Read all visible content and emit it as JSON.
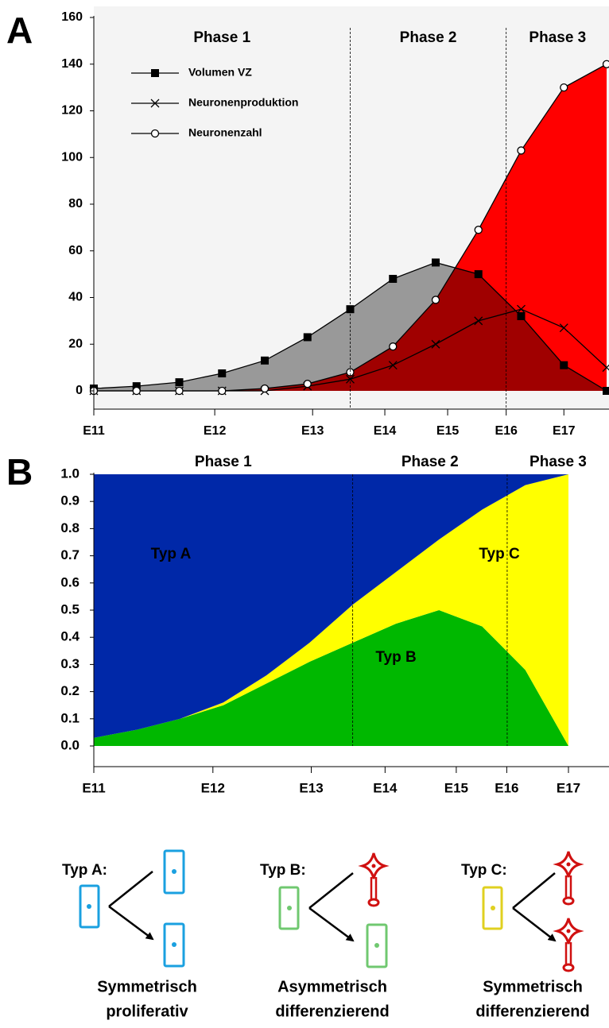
{
  "chart_data": [
    {
      "type": "line",
      "panel": "A",
      "annotations": [
        "Phase 1",
        "Phase 2",
        "Phase 3"
      ],
      "vlines": [
        6,
        9.65
      ],
      "x": [
        0,
        1,
        2,
        3,
        4,
        5,
        6,
        7,
        8,
        9,
        10,
        11,
        12
      ],
      "xlim": [
        0,
        12
      ],
      "xticks": [
        {
          "value": 0,
          "label": "E11"
        },
        {
          "value": 2.83,
          "label": "E12"
        },
        {
          "value": 5.12,
          "label": "E13"
        },
        {
          "value": 6.81,
          "label": "E14"
        },
        {
          "value": 8.28,
          "label": "E15"
        },
        {
          "value": 9.65,
          "label": "E16"
        },
        {
          "value": 11,
          "label": "E17"
        }
      ],
      "ylim": [
        0,
        160
      ],
      "yticks": [
        0,
        20,
        40,
        60,
        80,
        100,
        120,
        140,
        160
      ],
      "legend": "upper left",
      "series": [
        {
          "name": "Volumen VZ",
          "marker": "square",
          "color": "#000000",
          "fill": "#a0a0a0",
          "values": [
            1,
            2,
            3.7,
            7.5,
            13,
            23,
            35,
            48,
            55,
            50,
            32,
            11,
            0
          ]
        },
        {
          "name": "Neuronenproduktion",
          "marker": "cross",
          "color": "#000000",
          "values": [
            0,
            0,
            0,
            0,
            0,
            2,
            5,
            11,
            20,
            30,
            35,
            27,
            10
          ]
        },
        {
          "name": "Neuronenzahl",
          "marker": "circle",
          "color": "#000000",
          "fill": "#ff0000",
          "values": [
            0,
            0,
            0,
            0,
            1,
            3,
            8,
            19,
            39,
            69,
            103,
            130,
            140
          ]
        }
      ]
    },
    {
      "type": "stacked_area",
      "panel": "B",
      "annotations": [
        "Phase 1",
        "Phase 2",
        "Phase 3"
      ],
      "vlines": [
        6,
        9.58
      ],
      "x": [
        0,
        1,
        2,
        3,
        4,
        5,
        6,
        7,
        8,
        9,
        10,
        11
      ],
      "xlim": [
        0,
        11
      ],
      "xticks": [
        {
          "value": 0,
          "label": "E11"
        },
        {
          "value": 2.76,
          "label": "E12"
        },
        {
          "value": 5.04,
          "label": "E13"
        },
        {
          "value": 6.75,
          "label": "E14"
        },
        {
          "value": 8.4,
          "label": "E15"
        },
        {
          "value": 9.57,
          "label": "E16"
        },
        {
          "value": 11,
          "label": "E17"
        }
      ],
      "ylim": [
        0,
        1
      ],
      "yticks": [
        {
          "value": 0,
          "label": "0.0"
        },
        0.1,
        0.2,
        0.3,
        0.4,
        0.5,
        0.6,
        0.7,
        0.8,
        0.9,
        {
          "value": 1,
          "label": "1.0"
        }
      ],
      "series": [
        {
          "name": "Typ B",
          "color": "#00b800",
          "values": [
            0.03,
            0.06,
            0.1,
            0.15,
            0.23,
            0.31,
            0.38,
            0.45,
            0.5,
            0.44,
            0.28,
            0
          ]
        },
        {
          "name": "Typ C",
          "color": "#ffff00",
          "values": [
            0,
            0,
            0,
            0.01,
            0.03,
            0.07,
            0.14,
            0.19,
            0.26,
            0.43,
            0.68,
            1.0
          ]
        },
        {
          "name": "Typ A",
          "color": "#0028a8",
          "values": [
            0.97,
            0.94,
            0.9,
            0.84,
            0.74,
            0.62,
            0.48,
            0.36,
            0.24,
            0.13,
            0.04,
            0
          ]
        }
      ]
    }
  ],
  "diagram": {
    "types": [
      {
        "label": "Typ A:",
        "caption": [
          "Symmetrisch",
          "proliferativ"
        ]
      },
      {
        "label": "Typ B:",
        "caption": [
          "Asymmetrisch",
          "differenzierend"
        ]
      },
      {
        "label": "Typ C:",
        "caption": [
          "Symmetrisch",
          "differenzierend"
        ]
      }
    ]
  }
}
